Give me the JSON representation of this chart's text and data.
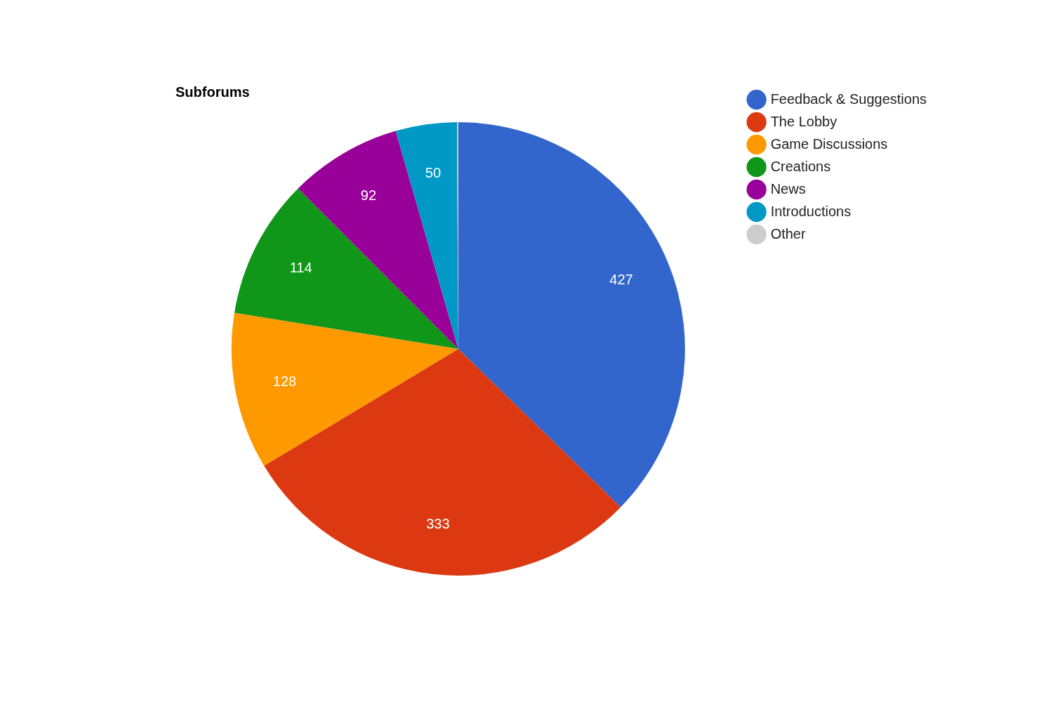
{
  "chart_data": {
    "type": "pie",
    "title": "Subforums",
    "categories": [
      "Feedback & Suggestions",
      "The Lobby",
      "Game Discussions",
      "Creations",
      "News",
      "Introductions",
      "Other"
    ],
    "values": [
      427,
      333,
      128,
      114,
      92,
      50,
      1
    ],
    "colors": [
      "#3366cc",
      "#dc3912",
      "#ff9900",
      "#109618",
      "#990099",
      "#0099c6",
      "#cccccc"
    ],
    "value_labels": [
      "427",
      "333",
      "128",
      "114",
      "92",
      "50",
      null
    ],
    "legend": "top right"
  }
}
